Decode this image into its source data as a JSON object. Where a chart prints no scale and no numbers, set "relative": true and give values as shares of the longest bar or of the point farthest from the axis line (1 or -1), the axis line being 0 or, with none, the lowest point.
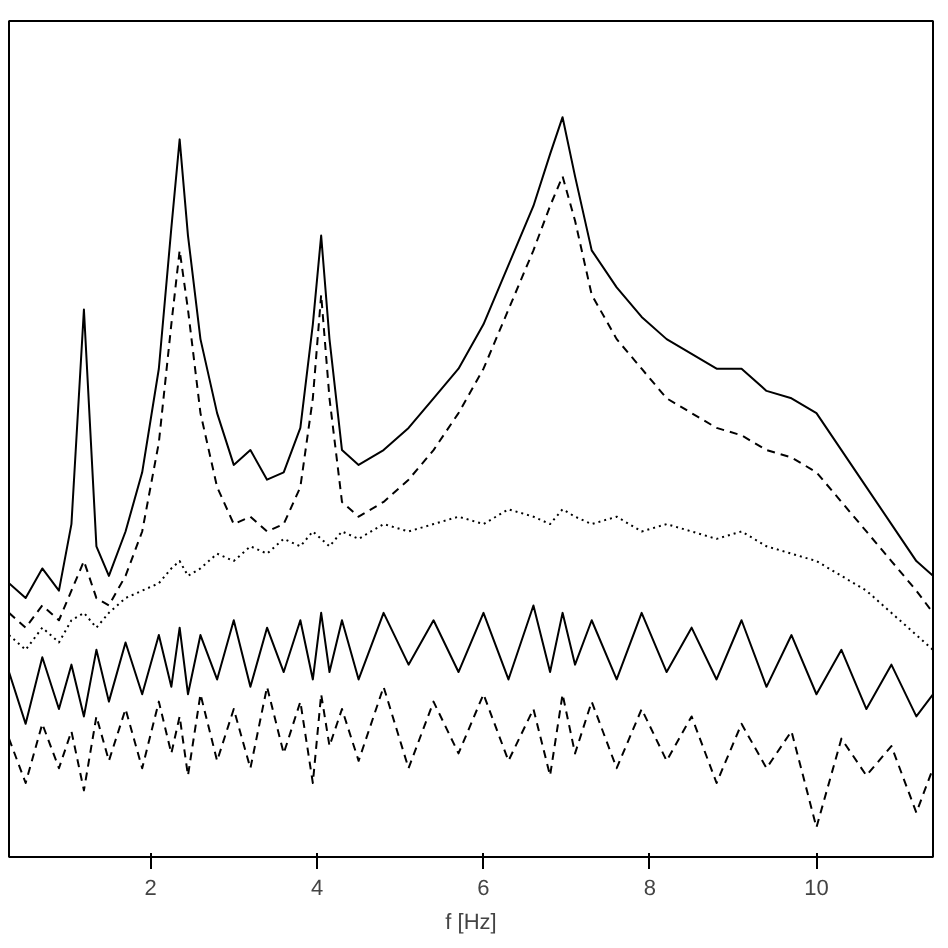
{
  "chart_data": {
    "type": "line",
    "xlabel": "f [Hz]",
    "relative": true,
    "grid": false,
    "tick_labels": "x",
    "xlim": [
      0.3,
      11.4
    ],
    "xticks": [
      2,
      4,
      6,
      8,
      10
    ],
    "x": [
      0.3,
      0.5,
      0.7,
      0.9,
      1.05,
      1.2,
      1.35,
      1.5,
      1.7,
      1.9,
      2.1,
      2.25,
      2.35,
      2.45,
      2.6,
      2.8,
      3.0,
      3.2,
      3.4,
      3.6,
      3.8,
      3.95,
      4.05,
      4.15,
      4.3,
      4.5,
      4.8,
      5.1,
      5.4,
      5.7,
      6.0,
      6.3,
      6.6,
      6.8,
      6.95,
      7.1,
      7.3,
      7.6,
      7.9,
      8.2,
      8.5,
      8.8,
      9.1,
      9.4,
      9.7,
      10.0,
      10.3,
      10.6,
      10.9,
      11.2,
      11.4
    ],
    "series": [
      {
        "color": "#000000",
        "line_style": "solid",
        "values": [
          0.37,
          0.35,
          0.39,
          0.36,
          0.45,
          0.74,
          0.42,
          0.38,
          0.44,
          0.52,
          0.66,
          0.85,
          0.97,
          0.84,
          0.7,
          0.6,
          0.53,
          0.55,
          0.51,
          0.52,
          0.58,
          0.72,
          0.84,
          0.7,
          0.55,
          0.53,
          0.55,
          0.58,
          0.62,
          0.66,
          0.72,
          0.8,
          0.88,
          0.95,
          1.0,
          0.92,
          0.82,
          0.77,
          0.73,
          0.7,
          0.68,
          0.66,
          0.66,
          0.63,
          0.62,
          0.6,
          0.55,
          0.5,
          0.45,
          0.4,
          0.38
        ]
      },
      {
        "color": "#000000",
        "line_style": "dashed",
        "values": [
          0.33,
          0.31,
          0.34,
          0.32,
          0.36,
          0.4,
          0.35,
          0.34,
          0.38,
          0.44,
          0.56,
          0.72,
          0.82,
          0.74,
          0.6,
          0.5,
          0.45,
          0.46,
          0.44,
          0.45,
          0.5,
          0.62,
          0.76,
          0.62,
          0.48,
          0.46,
          0.48,
          0.51,
          0.55,
          0.6,
          0.66,
          0.74,
          0.82,
          0.88,
          0.92,
          0.86,
          0.76,
          0.7,
          0.66,
          0.62,
          0.6,
          0.58,
          0.57,
          0.55,
          0.54,
          0.52,
          0.48,
          0.44,
          0.4,
          0.36,
          0.33
        ]
      },
      {
        "color": "#000000",
        "line_style": "dotted",
        "values": [
          0.3,
          0.28,
          0.31,
          0.29,
          0.32,
          0.33,
          0.31,
          0.33,
          0.35,
          0.36,
          0.37,
          0.39,
          0.4,
          0.38,
          0.39,
          0.41,
          0.4,
          0.42,
          0.41,
          0.43,
          0.42,
          0.44,
          0.43,
          0.42,
          0.44,
          0.43,
          0.45,
          0.44,
          0.45,
          0.46,
          0.45,
          0.47,
          0.46,
          0.45,
          0.47,
          0.46,
          0.45,
          0.46,
          0.44,
          0.45,
          0.44,
          0.43,
          0.44,
          0.42,
          0.41,
          0.4,
          0.38,
          0.36,
          0.33,
          0.3,
          0.28
        ]
      },
      {
        "color": "#000000",
        "line_style": "solid",
        "values": [
          0.25,
          0.18,
          0.27,
          0.2,
          0.26,
          0.19,
          0.28,
          0.21,
          0.29,
          0.22,
          0.3,
          0.23,
          0.31,
          0.22,
          0.3,
          0.24,
          0.32,
          0.23,
          0.31,
          0.25,
          0.32,
          0.24,
          0.33,
          0.25,
          0.32,
          0.24,
          0.33,
          0.26,
          0.32,
          0.25,
          0.33,
          0.24,
          0.34,
          0.25,
          0.33,
          0.26,
          0.32,
          0.24,
          0.33,
          0.25,
          0.31,
          0.24,
          0.32,
          0.23,
          0.3,
          0.22,
          0.28,
          0.2,
          0.26,
          0.19,
          0.22
        ]
      },
      {
        "color": "#000000",
        "line_style": "dashed",
        "values": [
          0.16,
          0.1,
          0.18,
          0.12,
          0.17,
          0.09,
          0.19,
          0.13,
          0.2,
          0.12,
          0.21,
          0.14,
          0.19,
          0.11,
          0.22,
          0.13,
          0.2,
          0.12,
          0.23,
          0.14,
          0.21,
          0.1,
          0.22,
          0.15,
          0.2,
          0.13,
          0.23,
          0.12,
          0.21,
          0.14,
          0.22,
          0.13,
          0.2,
          0.11,
          0.22,
          0.14,
          0.21,
          0.12,
          0.2,
          0.13,
          0.19,
          0.1,
          0.18,
          0.12,
          0.17,
          0.04,
          0.16,
          0.11,
          0.15,
          0.06,
          0.12
        ]
      }
    ]
  }
}
